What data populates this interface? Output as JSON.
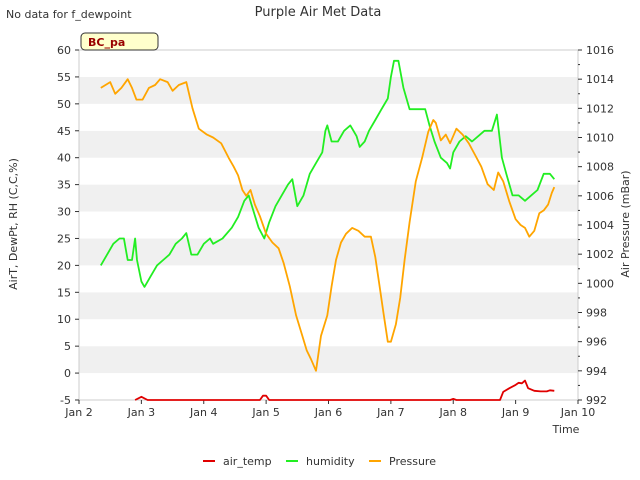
{
  "chart_data": {
    "type": "line",
    "title": "Purple Air Met Data",
    "note": "No data for f_dewpoint",
    "site_label": "BC_pa",
    "xlabel": "Time",
    "ylabel_left": "AirT, DewPt, RH (C,C,%)",
    "ylabel_right": "Air Pressure (mBar)",
    "ylim_left": [
      -5,
      60
    ],
    "ylim_right": [
      992,
      1016
    ],
    "xlim": [
      2,
      10
    ],
    "x_tick_values": [
      2,
      3,
      4,
      5,
      6,
      7,
      8,
      9,
      10
    ],
    "x_tick_labels": [
      "Jan 2",
      "Jan 3",
      "Jan 4",
      "Jan 5",
      "Jan 6",
      "Jan 7",
      "Jan 8",
      "Jan 9",
      "Jan 10"
    ],
    "y_left_ticks": [
      -5,
      0,
      5,
      10,
      15,
      20,
      25,
      30,
      35,
      40,
      45,
      50,
      55,
      60
    ],
    "y_right_ticks": [
      992,
      994,
      996,
      998,
      1000,
      1002,
      1004,
      1006,
      1008,
      1010,
      1012,
      1014,
      1016
    ],
    "grid": "horizontal bands",
    "legend_position": "bottom",
    "series": [
      {
        "name": "air_temp",
        "axis": "left",
        "color": "#e00000",
        "points": [
          [
            2.9,
            -5
          ],
          [
            3.0,
            -4.4
          ],
          [
            3.1,
            -5
          ],
          [
            3.5,
            -5
          ],
          [
            4.0,
            -5
          ],
          [
            4.5,
            -5
          ],
          [
            4.9,
            -5
          ],
          [
            4.95,
            -4.2
          ],
          [
            5.0,
            -4.2
          ],
          [
            5.05,
            -5
          ],
          [
            5.5,
            -5
          ],
          [
            6.0,
            -5
          ],
          [
            6.5,
            -5
          ],
          [
            7.0,
            -5
          ],
          [
            7.5,
            -5
          ],
          [
            7.95,
            -5
          ],
          [
            8.0,
            -4.8
          ],
          [
            8.05,
            -5
          ],
          [
            8.3,
            -5
          ],
          [
            8.75,
            -5
          ],
          [
            8.8,
            -3.5
          ],
          [
            8.9,
            -2.8
          ],
          [
            9.0,
            -2.2
          ],
          [
            9.05,
            -1.8
          ],
          [
            9.1,
            -1.9
          ],
          [
            9.15,
            -1.4
          ],
          [
            9.2,
            -2.8
          ],
          [
            9.3,
            -3.3
          ],
          [
            9.4,
            -3.4
          ],
          [
            9.5,
            -3.4
          ],
          [
            9.55,
            -3.2
          ],
          [
            9.62,
            -3.3
          ]
        ]
      },
      {
        "name": "humidity",
        "axis": "left",
        "color": "#22ee22",
        "points": [
          [
            2.35,
            20
          ],
          [
            2.45,
            22
          ],
          [
            2.55,
            24
          ],
          [
            2.65,
            25
          ],
          [
            2.72,
            25
          ],
          [
            2.78,
            21
          ],
          [
            2.85,
            21
          ],
          [
            2.9,
            25
          ],
          [
            2.93,
            21
          ],
          [
            3.0,
            17
          ],
          [
            3.05,
            16
          ],
          [
            3.15,
            18
          ],
          [
            3.25,
            20
          ],
          [
            3.35,
            21
          ],
          [
            3.45,
            22
          ],
          [
            3.55,
            24
          ],
          [
            3.65,
            25
          ],
          [
            3.72,
            26
          ],
          [
            3.8,
            22
          ],
          [
            3.9,
            22
          ],
          [
            4.0,
            24
          ],
          [
            4.1,
            25
          ],
          [
            4.15,
            24
          ],
          [
            4.3,
            25
          ],
          [
            4.45,
            27
          ],
          [
            4.55,
            29
          ],
          [
            4.65,
            32
          ],
          [
            4.72,
            33
          ],
          [
            4.8,
            30
          ],
          [
            4.88,
            27
          ],
          [
            4.97,
            25
          ],
          [
            5.05,
            28
          ],
          [
            5.15,
            31
          ],
          [
            5.25,
            33
          ],
          [
            5.35,
            35
          ],
          [
            5.42,
            36
          ],
          [
            5.5,
            31
          ],
          [
            5.6,
            33
          ],
          [
            5.7,
            37
          ],
          [
            5.8,
            39
          ],
          [
            5.9,
            41
          ],
          [
            5.95,
            45
          ],
          [
            5.98,
            46
          ],
          [
            6.05,
            43
          ],
          [
            6.15,
            43
          ],
          [
            6.25,
            45
          ],
          [
            6.35,
            46
          ],
          [
            6.45,
            44
          ],
          [
            6.5,
            42
          ],
          [
            6.58,
            43
          ],
          [
            6.65,
            45
          ],
          [
            6.75,
            47
          ],
          [
            6.85,
            49
          ],
          [
            6.95,
            51
          ],
          [
            7.0,
            55
          ],
          [
            7.05,
            58
          ],
          [
            7.12,
            58
          ],
          [
            7.2,
            53
          ],
          [
            7.3,
            49
          ],
          [
            7.45,
            49
          ],
          [
            7.55,
            49
          ],
          [
            7.62,
            46
          ],
          [
            7.7,
            43
          ],
          [
            7.8,
            40
          ],
          [
            7.9,
            39
          ],
          [
            7.95,
            38
          ],
          [
            8.0,
            41
          ],
          [
            8.1,
            43
          ],
          [
            8.2,
            44
          ],
          [
            8.3,
            43
          ],
          [
            8.4,
            44
          ],
          [
            8.5,
            45
          ],
          [
            8.62,
            45
          ],
          [
            8.7,
            48
          ],
          [
            8.78,
            40
          ],
          [
            8.85,
            37
          ],
          [
            8.95,
            33
          ],
          [
            9.05,
            33
          ],
          [
            9.15,
            32
          ],
          [
            9.25,
            33
          ],
          [
            9.35,
            34
          ],
          [
            9.45,
            37
          ],
          [
            9.55,
            37
          ],
          [
            9.62,
            36
          ]
        ]
      },
      {
        "name": "Pressure",
        "axis": "right",
        "color": "#ffa500",
        "points": [
          [
            2.35,
            1013.4
          ],
          [
            2.5,
            1013.8
          ],
          [
            2.58,
            1013.0
          ],
          [
            2.68,
            1013.4
          ],
          [
            2.78,
            1014.0
          ],
          [
            2.85,
            1013.4
          ],
          [
            2.92,
            1012.6
          ],
          [
            3.02,
            1012.6
          ],
          [
            3.12,
            1013.4
          ],
          [
            3.22,
            1013.6
          ],
          [
            3.3,
            1014.0
          ],
          [
            3.42,
            1013.8
          ],
          [
            3.5,
            1013.2
          ],
          [
            3.6,
            1013.6
          ],
          [
            3.72,
            1013.8
          ],
          [
            3.82,
            1012.0
          ],
          [
            3.92,
            1010.6
          ],
          [
            4.05,
            1010.2
          ],
          [
            4.15,
            1010.0
          ],
          [
            4.28,
            1009.6
          ],
          [
            4.4,
            1008.6
          ],
          [
            4.48,
            1008.0
          ],
          [
            4.55,
            1007.4
          ],
          [
            4.62,
            1006.4
          ],
          [
            4.68,
            1006.0
          ],
          [
            4.75,
            1006.4
          ],
          [
            4.82,
            1005.4
          ],
          [
            4.9,
            1004.6
          ],
          [
            5.0,
            1003.4
          ],
          [
            5.1,
            1002.8
          ],
          [
            5.2,
            1002.4
          ],
          [
            5.28,
            1001.4
          ],
          [
            5.38,
            999.8
          ],
          [
            5.48,
            997.8
          ],
          [
            5.58,
            996.4
          ],
          [
            5.65,
            995.4
          ],
          [
            5.72,
            994.8
          ],
          [
            5.8,
            994.0
          ],
          [
            5.88,
            996.4
          ],
          [
            5.98,
            997.8
          ],
          [
            6.05,
            999.8
          ],
          [
            6.12,
            1001.6
          ],
          [
            6.2,
            1002.8
          ],
          [
            6.28,
            1003.4
          ],
          [
            6.38,
            1003.8
          ],
          [
            6.48,
            1003.6
          ],
          [
            6.58,
            1003.2
          ],
          [
            6.68,
            1003.2
          ],
          [
            6.75,
            1001.8
          ],
          [
            6.82,
            999.8
          ],
          [
            6.88,
            998.0
          ],
          [
            6.95,
            996.0
          ],
          [
            7.0,
            996.0
          ],
          [
            7.08,
            997.2
          ],
          [
            7.15,
            999.0
          ],
          [
            7.22,
            1001.6
          ],
          [
            7.3,
            1004.2
          ],
          [
            7.4,
            1007.0
          ],
          [
            7.5,
            1008.6
          ],
          [
            7.6,
            1010.4
          ],
          [
            7.68,
            1011.2
          ],
          [
            7.72,
            1011.0
          ],
          [
            7.8,
            1009.8
          ],
          [
            7.88,
            1010.2
          ],
          [
            7.95,
            1009.6
          ],
          [
            8.05,
            1010.6
          ],
          [
            8.15,
            1010.2
          ],
          [
            8.25,
            1009.6
          ],
          [
            8.35,
            1008.8
          ],
          [
            8.45,
            1008.0
          ],
          [
            8.55,
            1006.8
          ],
          [
            8.65,
            1006.4
          ],
          [
            8.72,
            1007.6
          ],
          [
            8.8,
            1007.0
          ],
          [
            8.9,
            1005.6
          ],
          [
            9.0,
            1004.4
          ],
          [
            9.08,
            1004.0
          ],
          [
            9.15,
            1003.8
          ],
          [
            9.22,
            1003.2
          ],
          [
            9.3,
            1003.6
          ],
          [
            9.38,
            1004.8
          ],
          [
            9.45,
            1005.0
          ],
          [
            9.52,
            1005.4
          ],
          [
            9.58,
            1006.2
          ],
          [
            9.62,
            1006.6
          ]
        ]
      }
    ]
  }
}
